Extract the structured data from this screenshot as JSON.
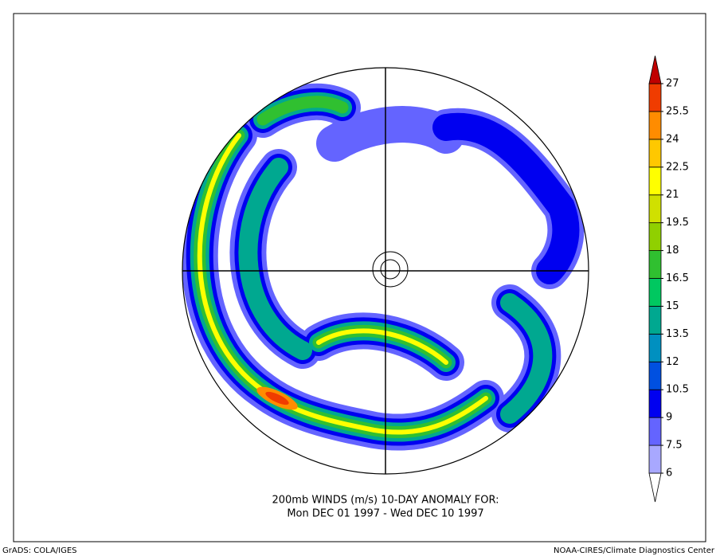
{
  "title": [
    "200mb WINDS (m/s)   10-DAY ANOMALY FOR:",
    "Mon DEC 01 1997 - Wed DEC 10 1997"
  ],
  "colorbar": {
    "levels": [
      6,
      7.5,
      9,
      10.5,
      12,
      13.5,
      15,
      16.5,
      18,
      19.5,
      21,
      22.5,
      24,
      25.5,
      27
    ],
    "colors": [
      "#ffffff",
      "#a8a8ff",
      "#6464ff",
      "#0000f0",
      "#0050e0",
      "#0090c0",
      "#00a890",
      "#00c860",
      "#30c030",
      "#90d000",
      "#d0e000",
      "#ffff00",
      "#ffc800",
      "#ff8c00",
      "#f03c00",
      "#c00000"
    ]
  },
  "footer": {
    "left": "GrADS: COLA/IGES",
    "right": "NOAA-CIRES/Climate Diagnostics Center"
  }
}
